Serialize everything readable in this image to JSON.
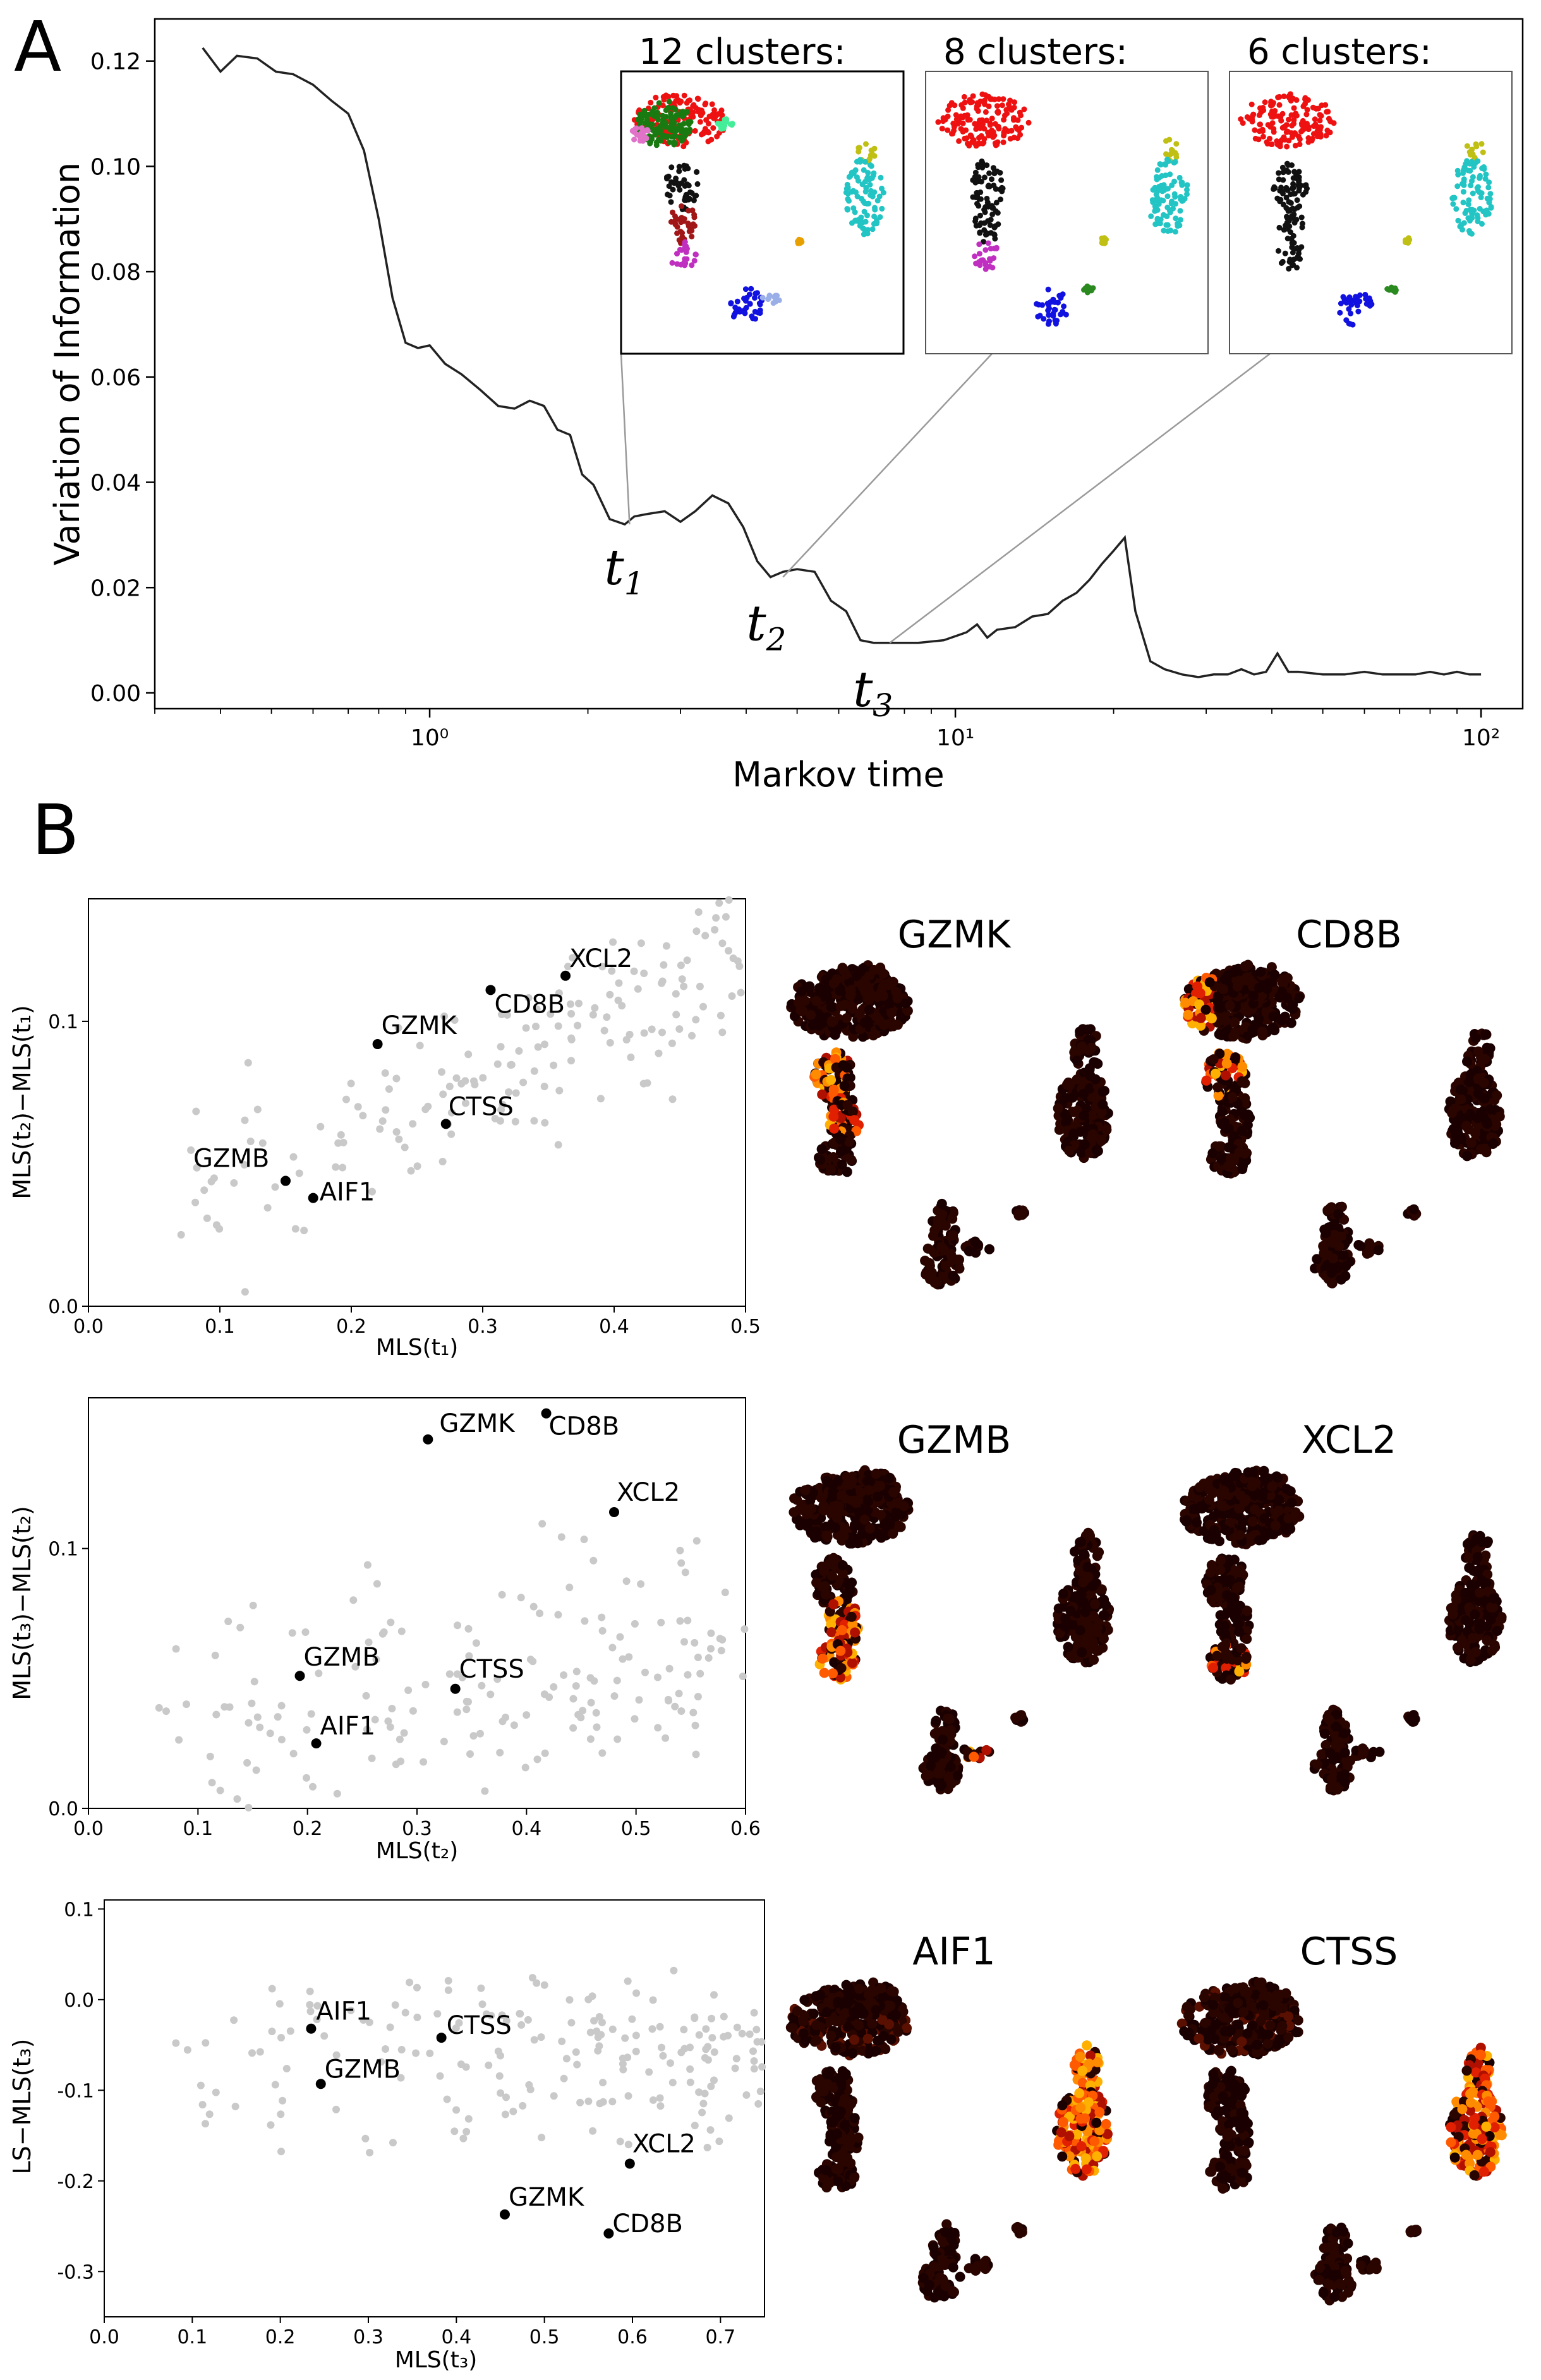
{
  "panel_labels": {
    "a": "A",
    "b": "B"
  },
  "chart_data": [
    {
      "id": "vi",
      "type": "line",
      "xscale": "log",
      "xlabel": "Markov time",
      "ylabel": "Variation of Information",
      "xlim": [
        0.3,
        120
      ],
      "ylim": [
        -0.003,
        0.128
      ],
      "yticks": [
        0.0,
        0.02,
        0.04,
        0.06,
        0.08,
        0.1,
        0.12
      ],
      "xticks": [
        {
          "value": 1,
          "label": "10⁰"
        },
        {
          "value": 10,
          "label": "10¹"
        },
        {
          "value": 100,
          "label": "10²"
        }
      ],
      "x": [
        0.37,
        0.4,
        0.43,
        0.47,
        0.51,
        0.55,
        0.6,
        0.65,
        0.7,
        0.75,
        0.8,
        0.85,
        0.9,
        0.95,
        1.0,
        1.07,
        1.15,
        1.25,
        1.35,
        1.45,
        1.55,
        1.65,
        1.75,
        1.85,
        1.95,
        2.05,
        2.2,
        2.35,
        2.45,
        2.6,
        2.8,
        3.0,
        3.2,
        3.45,
        3.7,
        3.95,
        4.2,
        4.45,
        4.7,
        5.0,
        5.4,
        5.8,
        6.2,
        6.6,
        7.0,
        7.5,
        8.5,
        9.5,
        10.5,
        11.0,
        11.5,
        12.0,
        13.0,
        14.0,
        15.0,
        16.0,
        17.0,
        18.0,
        19.0,
        20.0,
        21.0,
        22.0,
        23.5,
        25.0,
        27.0,
        29.0,
        31.0,
        33.0,
        35.0,
        37.0,
        39.0,
        41.0,
        43.0,
        45.0,
        50.0,
        55.0,
        60.0,
        65.0,
        70.0,
        75.0,
        80.0,
        85.0,
        90.0,
        95.0,
        100.0
      ],
      "y": [
        0.1225,
        0.118,
        0.121,
        0.1205,
        0.118,
        0.1175,
        0.1155,
        0.1125,
        0.11,
        0.103,
        0.09,
        0.075,
        0.0665,
        0.0655,
        0.066,
        0.0625,
        0.0605,
        0.0575,
        0.0545,
        0.054,
        0.0555,
        0.0545,
        0.05,
        0.049,
        0.0415,
        0.0395,
        0.033,
        0.032,
        0.0335,
        0.034,
        0.0345,
        0.0325,
        0.0345,
        0.0375,
        0.036,
        0.0315,
        0.025,
        0.022,
        0.023,
        0.0235,
        0.023,
        0.0175,
        0.0155,
        0.01,
        0.0095,
        0.0095,
        0.0095,
        0.01,
        0.0115,
        0.013,
        0.0105,
        0.012,
        0.0125,
        0.0145,
        0.015,
        0.0175,
        0.019,
        0.0215,
        0.0245,
        0.027,
        0.0295,
        0.0155,
        0.006,
        0.0045,
        0.0035,
        0.003,
        0.0035,
        0.0035,
        0.0045,
        0.0035,
        0.004,
        0.0075,
        0.004,
        0.004,
        0.0035,
        0.0035,
        0.004,
        0.0035,
        0.0035,
        0.0035,
        0.004,
        0.0035,
        0.004,
        0.0035,
        0.0035
      ],
      "markers": [
        {
          "label": "t",
          "sub": "1",
          "x": 2.4,
          "y": 0.032,
          "inset": "12 clusters:"
        },
        {
          "label": "t",
          "sub": "2",
          "x": 4.7,
          "y": 0.022,
          "inset": "8 clusters:"
        },
        {
          "label": "t",
          "sub": "3",
          "x": 7.5,
          "y": 0.0095,
          "inset": "6 clusters:"
        }
      ],
      "insets": [
        {
          "title": "12 clusters:",
          "clusters": [
            {
              "name": "green",
              "color": "#1a7a12"
            },
            {
              "name": "red",
              "color": "#ee1111"
            },
            {
              "name": "pink",
              "color": "#e072c8"
            },
            {
              "name": "mint",
              "color": "#44ee99"
            },
            {
              "name": "black",
              "color": "#111111"
            },
            {
              "name": "darkred",
              "color": "#a11616"
            },
            {
              "name": "magenta",
              "color": "#c030c0"
            },
            {
              "name": "olive",
              "color": "#c0bf14"
            },
            {
              "name": "cyan",
              "color": "#22c4c4"
            },
            {
              "name": "orange",
              "color": "#e8a000"
            },
            {
              "name": "blue",
              "color": "#1111e0"
            },
            {
              "name": "lightblue",
              "color": "#9aaee8"
            }
          ]
        },
        {
          "title": "8 clusters:",
          "clusters": [
            {
              "name": "red",
              "color": "#ee1111"
            },
            {
              "name": "black",
              "color": "#111111"
            },
            {
              "name": "magenta",
              "color": "#c030c0"
            },
            {
              "name": "olive",
              "color": "#c0bf14"
            },
            {
              "name": "cyan",
              "color": "#22c4c4"
            },
            {
              "name": "blue",
              "color": "#1111e0"
            },
            {
              "name": "green",
              "color": "#2a8a20"
            },
            {
              "name": "yellow",
              "color": "#c0bf14"
            }
          ]
        },
        {
          "title": "6 clusters:",
          "clusters": [
            {
              "name": "red",
              "color": "#ee1111"
            },
            {
              "name": "black",
              "color": "#111111"
            },
            {
              "name": "olive",
              "color": "#c0bf14"
            },
            {
              "name": "cyan",
              "color": "#22c4c4"
            },
            {
              "name": "blue",
              "color": "#1111e0"
            },
            {
              "name": "green",
              "color": "#2a8a20"
            }
          ]
        }
      ]
    },
    {
      "id": "s1",
      "type": "scatter",
      "xlabel": "MLS(t₁)",
      "ylabel": "MLS(t₂)−MLS(t₁)",
      "xlim": [
        0,
        0.5
      ],
      "ylim": [
        0,
        0.143
      ],
      "xticks": [
        0.0,
        0.1,
        0.2,
        0.3,
        0.4,
        0.5
      ],
      "yticks": [
        0.0,
        0.1
      ],
      "highlight": [
        {
          "gene": "XCL2",
          "x": 0.363,
          "y": 0.116
        },
        {
          "gene": "CD8B",
          "x": 0.306,
          "y": 0.111
        },
        {
          "gene": "GZMK",
          "x": 0.22,
          "y": 0.092
        },
        {
          "gene": "CTSS",
          "x": 0.272,
          "y": 0.064
        },
        {
          "gene": "GZMB",
          "x": 0.15,
          "y": 0.044
        },
        {
          "gene": "AIF1",
          "x": 0.171,
          "y": 0.038
        }
      ],
      "background": {
        "n": 170,
        "seed": 11,
        "trend": [
          0.2,
          0.02
        ],
        "noise": 0.018,
        "xrange": [
          0.05,
          0.5
        ]
      }
    },
    {
      "id": "s2",
      "type": "scatter",
      "xlabel": "MLS(t₂)",
      "ylabel": "MLS(t₃)−MLS(t₂)",
      "xlim": [
        0,
        0.6
      ],
      "ylim": [
        0,
        0.158
      ],
      "xticks": [
        0.0,
        0.1,
        0.2,
        0.3,
        0.4,
        0.5,
        0.6
      ],
      "yticks": [
        0.0,
        0.1
      ],
      "highlight": [
        {
          "gene": "GZMK",
          "x": 0.31,
          "y": 0.142
        },
        {
          "gene": "CD8B",
          "x": 0.418,
          "y": 0.152
        },
        {
          "gene": "XCL2",
          "x": 0.48,
          "y": 0.114
        },
        {
          "gene": "GZMB",
          "x": 0.193,
          "y": 0.051
        },
        {
          "gene": "CTSS",
          "x": 0.335,
          "y": 0.046
        },
        {
          "gene": "AIF1",
          "x": 0.208,
          "y": 0.025
        }
      ],
      "background": {
        "n": 170,
        "seed": 23,
        "trend": [
          0.06,
          0.02
        ],
        "noise": 0.02,
        "xrange": [
          0.06,
          0.6
        ]
      }
    },
    {
      "id": "s3",
      "type": "scatter",
      "xlabel": "MLS(t₃)",
      "ylabel": "LS−MLS(t₃)",
      "xlim": [
        0,
        0.75
      ],
      "ylim": [
        -0.35,
        0.11
      ],
      "xticks": [
        0.0,
        0.1,
        0.2,
        0.3,
        0.4,
        0.5,
        0.6,
        0.7
      ],
      "yticks": [
        0.1,
        0.0,
        -0.1,
        -0.2,
        -0.3
      ],
      "highlight": [
        {
          "gene": "AIF1",
          "x": 0.235,
          "y": -0.032
        },
        {
          "gene": "CTSS",
          "x": 0.383,
          "y": -0.042
        },
        {
          "gene": "GZMB",
          "x": 0.246,
          "y": -0.093
        },
        {
          "gene": "XCL2",
          "x": 0.597,
          "y": -0.181
        },
        {
          "gene": "GZMK",
          "x": 0.455,
          "y": -0.237
        },
        {
          "gene": "CD8B",
          "x": 0.573,
          "y": -0.258
        }
      ],
      "background": {
        "n": 190,
        "seed": 37,
        "trend": [
          0.0,
          -0.04
        ],
        "noise": 0.035,
        "xrange": [
          0.07,
          0.75
        ]
      }
    }
  ],
  "expression_maps": [
    {
      "gene": "GZMK",
      "hot": "mid-stem"
    },
    {
      "gene": "CD8B",
      "hot": "head-left"
    },
    {
      "gene": "GZMB",
      "hot": "lower-stem"
    },
    {
      "gene": "XCL2",
      "hot": "lower-stem-weak"
    },
    {
      "gene": "AIF1",
      "hot": "right-blob"
    },
    {
      "gene": "CTSS",
      "hot": "right-blob"
    }
  ],
  "colors": {
    "line": "#222222",
    "grey_dot": "#c9c9c9",
    "black_dot": "#000000",
    "axis": "#000000",
    "inset_link": "#9a9a9a"
  }
}
